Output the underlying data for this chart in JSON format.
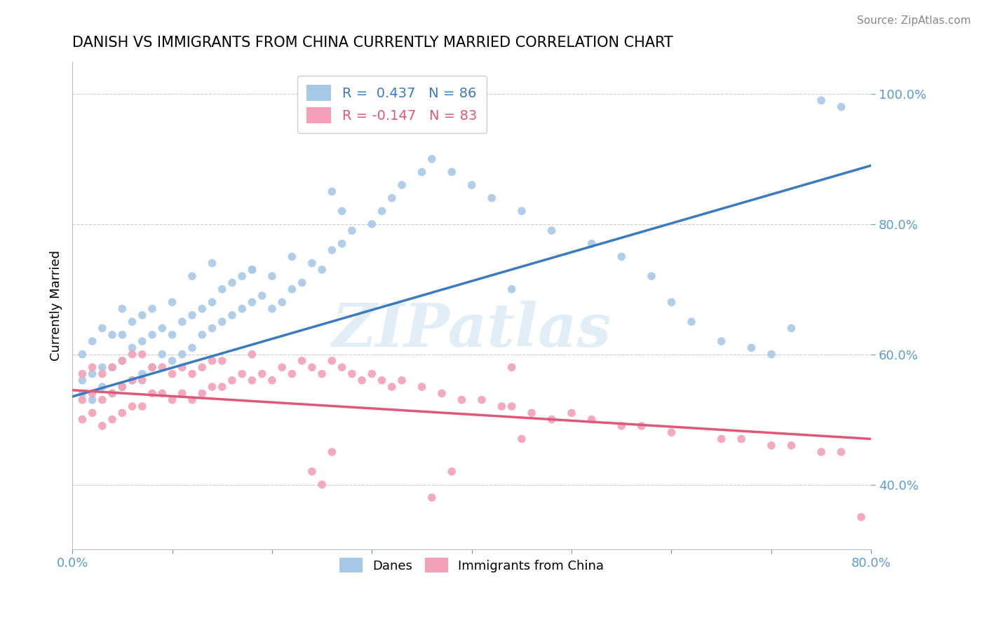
{
  "title": "DANISH VS IMMIGRANTS FROM CHINA CURRENTLY MARRIED CORRELATION CHART",
  "source": "Source: ZipAtlas.com",
  "ylabel": "Currently Married",
  "xlim": [
    0.0,
    0.8
  ],
  "ylim": [
    0.3,
    1.05
  ],
  "xticks": [
    0.0,
    0.1,
    0.2,
    0.3,
    0.4,
    0.5,
    0.6,
    0.7,
    0.8
  ],
  "yticks": [
    0.4,
    0.6,
    0.8,
    1.0
  ],
  "yticklabels": [
    "40.0%",
    "60.0%",
    "80.0%",
    "100.0%"
  ],
  "blue_R": 0.437,
  "blue_N": 86,
  "pink_R": -0.147,
  "pink_N": 83,
  "blue_color": "#a8c8e8",
  "pink_color": "#f4a0b8",
  "blue_line_color": "#3a7abf",
  "pink_line_color": "#e05878",
  "watermark": "ZIPatlas",
  "legend_label_blue": "Danes",
  "legend_label_pink": "Immigrants from China",
  "title_fontsize": 15,
  "axis_tick_color": "#5b9bd5",
  "grid_color": "#cccccc",
  "background_color": "#ffffff",
  "blue_line_x0": 0.0,
  "blue_line_y0": 0.535,
  "blue_line_x1": 0.8,
  "blue_line_y1": 0.89,
  "pink_line_x0": 0.0,
  "pink_line_y0": 0.545,
  "pink_line_x1": 0.8,
  "pink_line_y1": 0.47,
  "blue_scatter_x": [
    0.01,
    0.01,
    0.01,
    0.02,
    0.02,
    0.02,
    0.03,
    0.03,
    0.03,
    0.04,
    0.04,
    0.04,
    0.05,
    0.05,
    0.05,
    0.05,
    0.06,
    0.06,
    0.06,
    0.07,
    0.07,
    0.07,
    0.08,
    0.08,
    0.08,
    0.09,
    0.09,
    0.1,
    0.1,
    0.1,
    0.11,
    0.11,
    0.12,
    0.12,
    0.13,
    0.13,
    0.14,
    0.14,
    0.15,
    0.15,
    0.16,
    0.16,
    0.17,
    0.17,
    0.18,
    0.18,
    0.19,
    0.2,
    0.2,
    0.21,
    0.22,
    0.22,
    0.23,
    0.24,
    0.25,
    0.26,
    0.27,
    0.28,
    0.3,
    0.31,
    0.32,
    0.33,
    0.35,
    0.36,
    0.38,
    0.4,
    0.42,
    0.45,
    0.48,
    0.52,
    0.55,
    0.58,
    0.6,
    0.62,
    0.65,
    0.68,
    0.7,
    0.72,
    0.75,
    0.77,
    0.26,
    0.27,
    0.14,
    0.12,
    0.18,
    0.44
  ],
  "blue_scatter_y": [
    0.54,
    0.56,
    0.6,
    0.53,
    0.57,
    0.62,
    0.55,
    0.58,
    0.64,
    0.54,
    0.58,
    0.63,
    0.55,
    0.59,
    0.63,
    0.67,
    0.56,
    0.61,
    0.65,
    0.57,
    0.62,
    0.66,
    0.58,
    0.63,
    0.67,
    0.6,
    0.64,
    0.59,
    0.63,
    0.68,
    0.6,
    0.65,
    0.61,
    0.66,
    0.63,
    0.67,
    0.64,
    0.68,
    0.65,
    0.7,
    0.66,
    0.71,
    0.67,
    0.72,
    0.68,
    0.73,
    0.69,
    0.67,
    0.72,
    0.68,
    0.7,
    0.75,
    0.71,
    0.74,
    0.73,
    0.76,
    0.77,
    0.79,
    0.8,
    0.82,
    0.84,
    0.86,
    0.88,
    0.9,
    0.88,
    0.86,
    0.84,
    0.82,
    0.79,
    0.77,
    0.75,
    0.72,
    0.68,
    0.65,
    0.62,
    0.61,
    0.6,
    0.64,
    0.99,
    0.98,
    0.85,
    0.82,
    0.74,
    0.72,
    0.73,
    0.7
  ],
  "pink_scatter_x": [
    0.01,
    0.01,
    0.01,
    0.02,
    0.02,
    0.02,
    0.03,
    0.03,
    0.03,
    0.04,
    0.04,
    0.04,
    0.05,
    0.05,
    0.05,
    0.06,
    0.06,
    0.06,
    0.07,
    0.07,
    0.07,
    0.08,
    0.08,
    0.09,
    0.09,
    0.1,
    0.1,
    0.11,
    0.11,
    0.12,
    0.12,
    0.13,
    0.13,
    0.14,
    0.14,
    0.15,
    0.15,
    0.16,
    0.17,
    0.18,
    0.18,
    0.19,
    0.2,
    0.21,
    0.22,
    0.23,
    0.24,
    0.25,
    0.26,
    0.27,
    0.28,
    0.29,
    0.3,
    0.31,
    0.32,
    0.33,
    0.35,
    0.37,
    0.39,
    0.41,
    0.43,
    0.44,
    0.44,
    0.46,
    0.48,
    0.5,
    0.52,
    0.55,
    0.57,
    0.6,
    0.65,
    0.67,
    0.7,
    0.72,
    0.75,
    0.77,
    0.79,
    0.24,
    0.25,
    0.26,
    0.36,
    0.38,
    0.45
  ],
  "pink_scatter_y": [
    0.5,
    0.53,
    0.57,
    0.51,
    0.54,
    0.58,
    0.49,
    0.53,
    0.57,
    0.5,
    0.54,
    0.58,
    0.51,
    0.55,
    0.59,
    0.52,
    0.56,
    0.6,
    0.52,
    0.56,
    0.6,
    0.54,
    0.58,
    0.54,
    0.58,
    0.53,
    0.57,
    0.54,
    0.58,
    0.53,
    0.57,
    0.54,
    0.58,
    0.55,
    0.59,
    0.55,
    0.59,
    0.56,
    0.57,
    0.56,
    0.6,
    0.57,
    0.56,
    0.58,
    0.57,
    0.59,
    0.58,
    0.57,
    0.59,
    0.58,
    0.57,
    0.56,
    0.57,
    0.56,
    0.55,
    0.56,
    0.55,
    0.54,
    0.53,
    0.53,
    0.52,
    0.58,
    0.52,
    0.51,
    0.5,
    0.51,
    0.5,
    0.49,
    0.49,
    0.48,
    0.47,
    0.47,
    0.46,
    0.46,
    0.45,
    0.45,
    0.35,
    0.42,
    0.4,
    0.45,
    0.38,
    0.42,
    0.47
  ]
}
